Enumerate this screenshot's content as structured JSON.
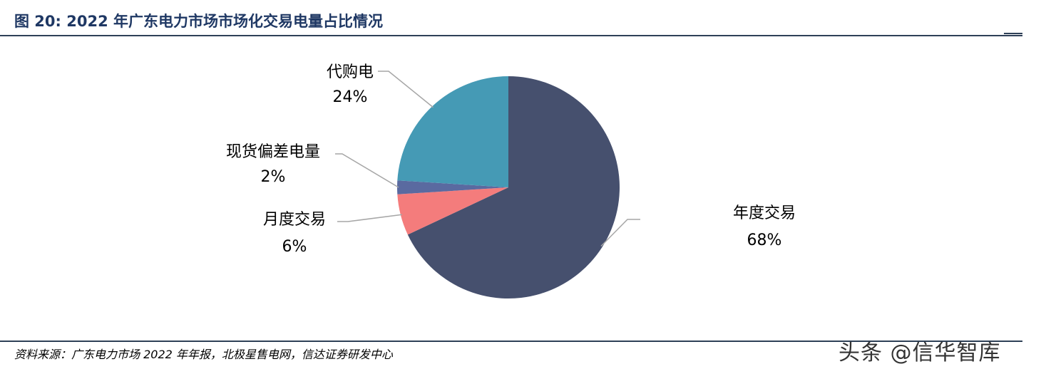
{
  "figure": {
    "title": "图 20:  2022 年广东电力市场市场化交易电量占比情况",
    "source": "资料来源：广东电力市场 2022 年年报，北极星售电网，信达证券研发中心",
    "watermark": "头条 @信华智库"
  },
  "chart_data": {
    "type": "pie",
    "title": "",
    "slices": [
      {
        "label": "年度交易",
        "value": 68,
        "value_label": "68%",
        "color": "#46506e"
      },
      {
        "label": "月度交易",
        "value": 6,
        "value_label": "6%",
        "color": "#f47c7c"
      },
      {
        "label": "现货偏差电量",
        "value": 2,
        "value_label": "2%",
        "color": "#5a6aa0"
      },
      {
        "label": "代购电",
        "value": 24,
        "value_label": "24%",
        "color": "#459ab5"
      }
    ],
    "start_angle": "12 o'clock",
    "direction": "clockwise",
    "leader_line_color": "#a6a6a6"
  }
}
